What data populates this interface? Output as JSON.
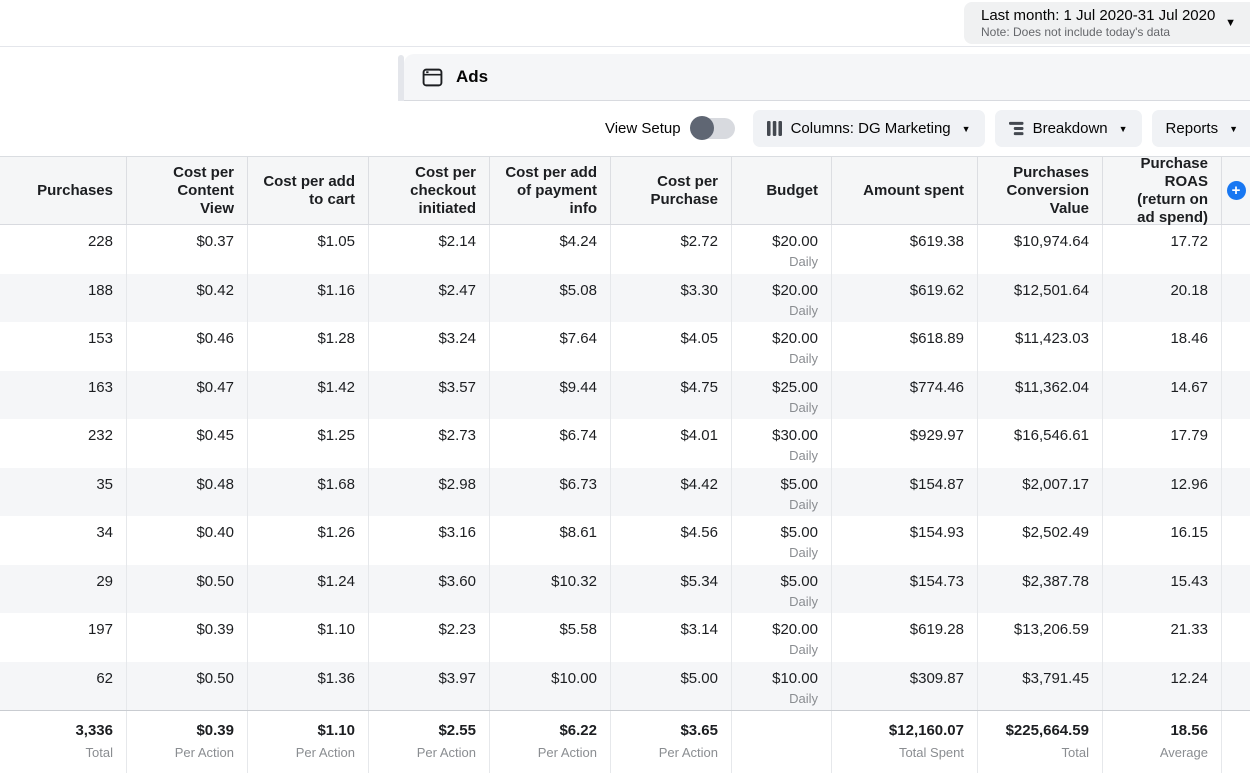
{
  "topbar": {
    "date_range": "Last month: 1 Jul 2020-31 Jul 2020",
    "date_note": "Note: Does not include today's data"
  },
  "tabs": {
    "ads_label": "Ads"
  },
  "toolbar": {
    "view_setup_label": "View Setup",
    "view_setup_state": "off",
    "columns_label": "Columns: DG Marketing",
    "breakdown_label": "Breakdown",
    "reports_label": "Reports"
  },
  "icons": {
    "caret_down": "▼",
    "add_column": "+",
    "ads_icon": "window-frame",
    "columns_icon": "three-vertical-bars",
    "breakdown_icon": "stacked-bars"
  },
  "colors": {
    "accent_blue": "#1877f2",
    "header_bg": "#f5f6f7",
    "alt_row_bg": "#f5f6f8",
    "secondary_text": "#8a8d91"
  },
  "table": {
    "budget_sublabel": "Daily",
    "columns": [
      {
        "key": "purchases",
        "label": "Purchases"
      },
      {
        "key": "cost-per-content-view",
        "label": "Cost per Content View"
      },
      {
        "key": "cost-per-add-to-cart",
        "label": "Cost per add to cart"
      },
      {
        "key": "cost-per-checkout-initiated",
        "label": "Cost per checkout initiated"
      },
      {
        "key": "cost-per-add-of-payment-info",
        "label": "Cost per add of payment info"
      },
      {
        "key": "cost-per-purchase",
        "label": "Cost per Purchase"
      },
      {
        "key": "budget",
        "label": "Budget"
      },
      {
        "key": "amount-spent",
        "label": "Amount spent"
      },
      {
        "key": "purchases-conversion-value",
        "label": "Purchases Conversion Value"
      },
      {
        "key": "purchase-roas",
        "label": "Purchase ROAS (return on ad spend)"
      }
    ],
    "rows": [
      [
        "228",
        "$0.37",
        "$1.05",
        "$2.14",
        "$4.24",
        "$2.72",
        "$20.00",
        "$619.38",
        "$10,974.64",
        "17.72"
      ],
      [
        "188",
        "$0.42",
        "$1.16",
        "$2.47",
        "$5.08",
        "$3.30",
        "$20.00",
        "$619.62",
        "$12,501.64",
        "20.18"
      ],
      [
        "153",
        "$0.46",
        "$1.28",
        "$3.24",
        "$7.64",
        "$4.05",
        "$20.00",
        "$618.89",
        "$11,423.03",
        "18.46"
      ],
      [
        "163",
        "$0.47",
        "$1.42",
        "$3.57",
        "$9.44",
        "$4.75",
        "$25.00",
        "$774.46",
        "$11,362.04",
        "14.67"
      ],
      [
        "232",
        "$0.45",
        "$1.25",
        "$2.73",
        "$6.74",
        "$4.01",
        "$30.00",
        "$929.97",
        "$16,546.61",
        "17.79"
      ],
      [
        "35",
        "$0.48",
        "$1.68",
        "$2.98",
        "$6.73",
        "$4.42",
        "$5.00",
        "$154.87",
        "$2,007.17",
        "12.96"
      ],
      [
        "34",
        "$0.40",
        "$1.26",
        "$3.16",
        "$8.61",
        "$4.56",
        "$5.00",
        "$154.93",
        "$2,502.49",
        "16.15"
      ],
      [
        "29",
        "$0.50",
        "$1.24",
        "$3.60",
        "$10.32",
        "$5.34",
        "$5.00",
        "$154.73",
        "$2,387.78",
        "15.43"
      ],
      [
        "197",
        "$0.39",
        "$1.10",
        "$2.23",
        "$5.58",
        "$3.14",
        "$20.00",
        "$619.28",
        "$13,206.59",
        "21.33"
      ],
      [
        "62",
        "$0.50",
        "$1.36",
        "$3.97",
        "$10.00",
        "$5.00",
        "$10.00",
        "$309.87",
        "$3,791.45",
        "12.24"
      ]
    ],
    "footer": [
      {
        "value": "3,336",
        "label": "Total"
      },
      {
        "value": "$0.39",
        "label": "Per Action"
      },
      {
        "value": "$1.10",
        "label": "Per Action"
      },
      {
        "value": "$2.55",
        "label": "Per Action"
      },
      {
        "value": "$6.22",
        "label": "Per Action"
      },
      {
        "value": "$3.65",
        "label": "Per Action"
      },
      {
        "value": "",
        "label": ""
      },
      {
        "value": "$12,160.07",
        "label": "Total Spent"
      },
      {
        "value": "$225,664.59",
        "label": "Total"
      },
      {
        "value": "18.56",
        "label": "Average"
      }
    ]
  }
}
